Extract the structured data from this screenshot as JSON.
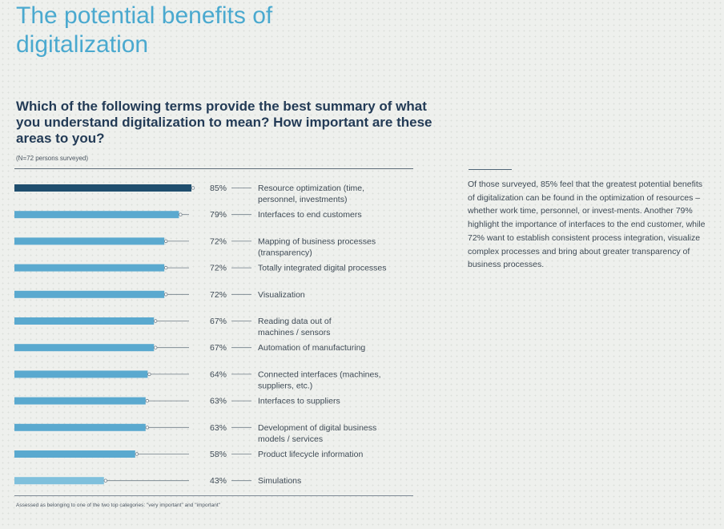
{
  "title": "The potential benefits of digitalization",
  "question": "Which of the following terms provide the best summary of what you understand digitalization to mean? How important are these areas to you?",
  "sample_note": "(N=72 persons surveyed)",
  "footnote": "Assessed as belonging to one of the two top categories: \"very important\" and \"important\"",
  "summary_text": "Of those surveyed, 85% feel that the greatest potential benefits of digitalization can be found in the optimization of resources – whether work time, personnel, or invest-ments. Another 79% highlight the importance of interfaces to the end customer, while 72% want to establish consistent process integration, visualize complex processes and bring about greater transparency of business processes.",
  "colors": {
    "highlight_bar": "#1f4e6e",
    "bar": "#5aa9cf",
    "bar_light": "#7fc0dc",
    "connector": "#6f7c86",
    "title": "#4aa9cf",
    "question": "#233b56"
  },
  "chart_data": {
    "type": "bar",
    "orientation": "horizontal",
    "unit": "%",
    "xlim": [
      0,
      100
    ],
    "categories": [
      [
        "Resource optimization (time,",
        "personnel, investments)"
      ],
      [
        "Interfaces to end customers"
      ],
      [
        "Mapping of business processes",
        "(transparency)"
      ],
      [
        "Totally integrated digital processes"
      ],
      [
        "Visualization"
      ],
      [
        "Reading data out of",
        "machines / sensors"
      ],
      [
        "Automation of manufacturing"
      ],
      [
        "Connected interfaces (machines,",
        "suppliers, etc.)"
      ],
      [
        "Interfaces to suppliers"
      ],
      [
        "Development of digital business",
        "models / services"
      ],
      [
        "Product lifecycle information"
      ],
      [
        "Simulations"
      ]
    ],
    "values": [
      85,
      79,
      72,
      72,
      72,
      67,
      67,
      64,
      63,
      63,
      58,
      43
    ],
    "value_labels": [
      "85%",
      "79%",
      "72%",
      "72%",
      "72%",
      "67%",
      "67%",
      "64%",
      "63%",
      "63%",
      "58%",
      "43%"
    ],
    "highlighted_index": 0
  }
}
